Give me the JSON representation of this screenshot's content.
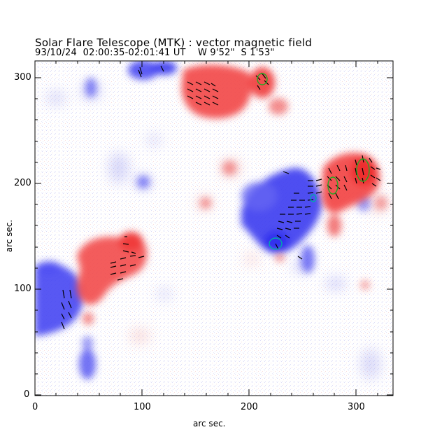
{
  "figure": {
    "title": "Solar Flare Telescope (MTK) : vector magnetic field",
    "subtitle": "93/10/24  02:00:35-02:01:41 UT    W 9'52\"  S 1'53\"",
    "xlabel": "arc sec.",
    "ylabel": "arc sec.",
    "x_ticks": [
      "0",
      "100",
      "200",
      "300"
    ],
    "y_ticks": [
      "0",
      "100",
      "200",
      "300"
    ],
    "colors": {
      "positive_polarity": "#ff3b3b",
      "negative_polarity": "#4a4aff",
      "vectors": "#000000",
      "contour_green": "#22aa22",
      "contour_cyan": "#00aaaa"
    }
  }
}
